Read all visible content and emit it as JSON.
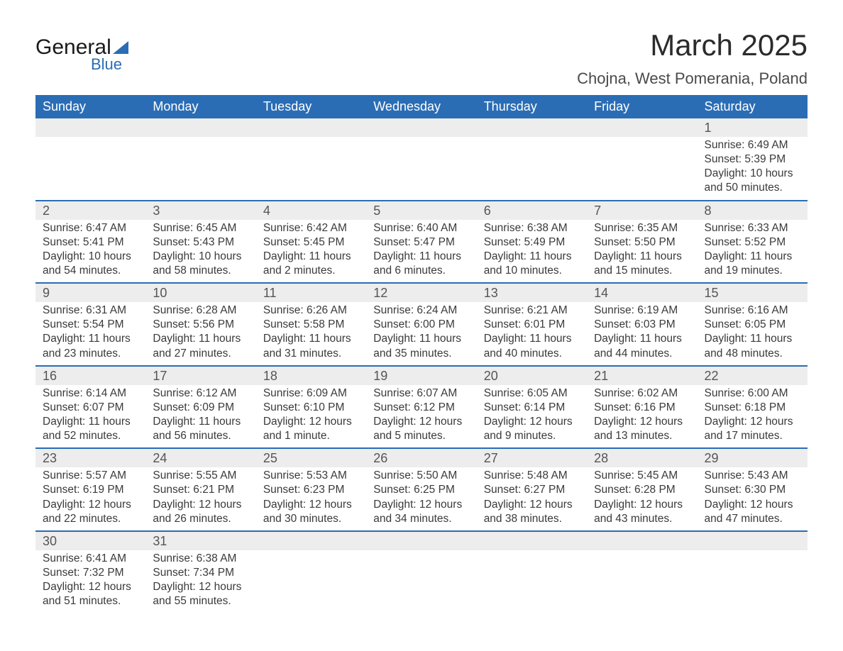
{
  "logo": {
    "line1": "General",
    "line2": "Blue"
  },
  "title": "March 2025",
  "location": "Chojna, West Pomerania, Poland",
  "day_headers": [
    "Sunday",
    "Monday",
    "Tuesday",
    "Wednesday",
    "Thursday",
    "Friday",
    "Saturday"
  ],
  "labels": {
    "sunrise": "Sunrise:",
    "sunset": "Sunset:",
    "daylight": "Daylight:"
  },
  "colors": {
    "header_bg": "#2a6db5",
    "header_text": "#ffffff",
    "daynum_bg": "#ededed",
    "row_divider": "#2a6db5",
    "body_text": "#3a3a3a",
    "background": "#ffffff"
  },
  "weeks": [
    [
      null,
      null,
      null,
      null,
      null,
      null,
      {
        "day": "1",
        "sunrise": "6:49 AM",
        "sunset": "5:39 PM",
        "daylight": "10 hours and 50 minutes."
      }
    ],
    [
      {
        "day": "2",
        "sunrise": "6:47 AM",
        "sunset": "5:41 PM",
        "daylight": "10 hours and 54 minutes."
      },
      {
        "day": "3",
        "sunrise": "6:45 AM",
        "sunset": "5:43 PM",
        "daylight": "10 hours and 58 minutes."
      },
      {
        "day": "4",
        "sunrise": "6:42 AM",
        "sunset": "5:45 PM",
        "daylight": "11 hours and 2 minutes."
      },
      {
        "day": "5",
        "sunrise": "6:40 AM",
        "sunset": "5:47 PM",
        "daylight": "11 hours and 6 minutes."
      },
      {
        "day": "6",
        "sunrise": "6:38 AM",
        "sunset": "5:49 PM",
        "daylight": "11 hours and 10 minutes."
      },
      {
        "day": "7",
        "sunrise": "6:35 AM",
        "sunset": "5:50 PM",
        "daylight": "11 hours and 15 minutes."
      },
      {
        "day": "8",
        "sunrise": "6:33 AM",
        "sunset": "5:52 PM",
        "daylight": "11 hours and 19 minutes."
      }
    ],
    [
      {
        "day": "9",
        "sunrise": "6:31 AM",
        "sunset": "5:54 PM",
        "daylight": "11 hours and 23 minutes."
      },
      {
        "day": "10",
        "sunrise": "6:28 AM",
        "sunset": "5:56 PM",
        "daylight": "11 hours and 27 minutes."
      },
      {
        "day": "11",
        "sunrise": "6:26 AM",
        "sunset": "5:58 PM",
        "daylight": "11 hours and 31 minutes."
      },
      {
        "day": "12",
        "sunrise": "6:24 AM",
        "sunset": "6:00 PM",
        "daylight": "11 hours and 35 minutes."
      },
      {
        "day": "13",
        "sunrise": "6:21 AM",
        "sunset": "6:01 PM",
        "daylight": "11 hours and 40 minutes."
      },
      {
        "day": "14",
        "sunrise": "6:19 AM",
        "sunset": "6:03 PM",
        "daylight": "11 hours and 44 minutes."
      },
      {
        "day": "15",
        "sunrise": "6:16 AM",
        "sunset": "6:05 PM",
        "daylight": "11 hours and 48 minutes."
      }
    ],
    [
      {
        "day": "16",
        "sunrise": "6:14 AM",
        "sunset": "6:07 PM",
        "daylight": "11 hours and 52 minutes."
      },
      {
        "day": "17",
        "sunrise": "6:12 AM",
        "sunset": "6:09 PM",
        "daylight": "11 hours and 56 minutes."
      },
      {
        "day": "18",
        "sunrise": "6:09 AM",
        "sunset": "6:10 PM",
        "daylight": "12 hours and 1 minute."
      },
      {
        "day": "19",
        "sunrise": "6:07 AM",
        "sunset": "6:12 PM",
        "daylight": "12 hours and 5 minutes."
      },
      {
        "day": "20",
        "sunrise": "6:05 AM",
        "sunset": "6:14 PM",
        "daylight": "12 hours and 9 minutes."
      },
      {
        "day": "21",
        "sunrise": "6:02 AM",
        "sunset": "6:16 PM",
        "daylight": "12 hours and 13 minutes."
      },
      {
        "day": "22",
        "sunrise": "6:00 AM",
        "sunset": "6:18 PM",
        "daylight": "12 hours and 17 minutes."
      }
    ],
    [
      {
        "day": "23",
        "sunrise": "5:57 AM",
        "sunset": "6:19 PM",
        "daylight": "12 hours and 22 minutes."
      },
      {
        "day": "24",
        "sunrise": "5:55 AM",
        "sunset": "6:21 PM",
        "daylight": "12 hours and 26 minutes."
      },
      {
        "day": "25",
        "sunrise": "5:53 AM",
        "sunset": "6:23 PM",
        "daylight": "12 hours and 30 minutes."
      },
      {
        "day": "26",
        "sunrise": "5:50 AM",
        "sunset": "6:25 PM",
        "daylight": "12 hours and 34 minutes."
      },
      {
        "day": "27",
        "sunrise": "5:48 AM",
        "sunset": "6:27 PM",
        "daylight": "12 hours and 38 minutes."
      },
      {
        "day": "28",
        "sunrise": "5:45 AM",
        "sunset": "6:28 PM",
        "daylight": "12 hours and 43 minutes."
      },
      {
        "day": "29",
        "sunrise": "5:43 AM",
        "sunset": "6:30 PM",
        "daylight": "12 hours and 47 minutes."
      }
    ],
    [
      {
        "day": "30",
        "sunrise": "6:41 AM",
        "sunset": "7:32 PM",
        "daylight": "12 hours and 51 minutes."
      },
      {
        "day": "31",
        "sunrise": "6:38 AM",
        "sunset": "7:34 PM",
        "daylight": "12 hours and 55 minutes."
      },
      null,
      null,
      null,
      null,
      null
    ]
  ]
}
